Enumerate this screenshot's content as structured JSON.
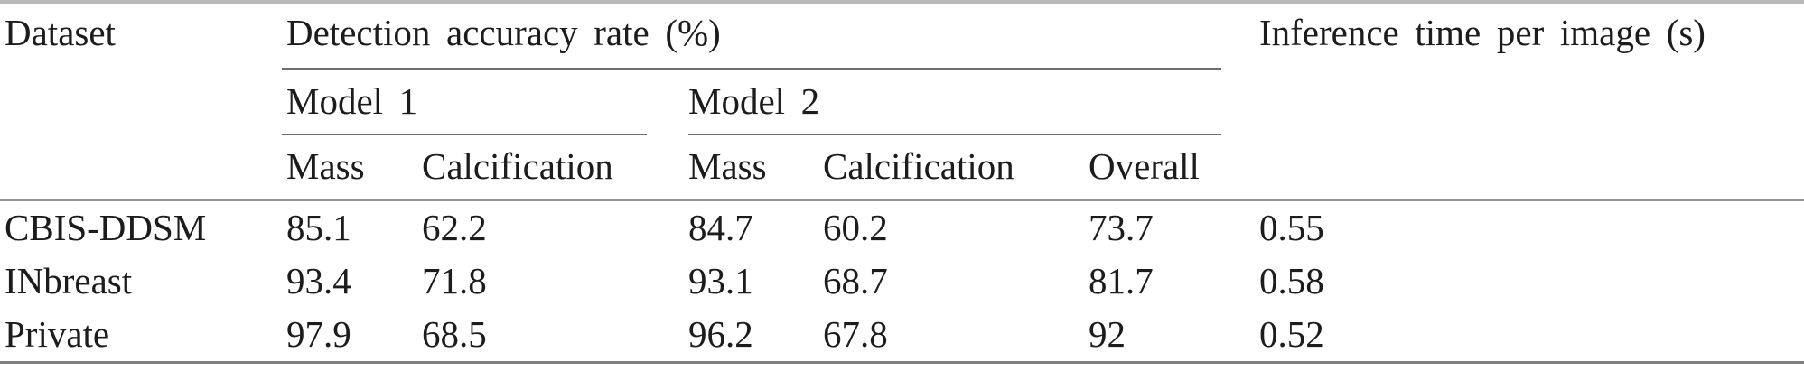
{
  "table": {
    "header": {
      "dataset": "Dataset",
      "detection_group": "Detection accuracy rate (%)",
      "inference": "Inference time per image (s)",
      "model1": "Model 1",
      "model2": "Model 2",
      "m1_mass": "Mass",
      "m1_calcification": "Calcification",
      "m2_mass": "Mass",
      "m2_calcification": "Calcification",
      "overall": "Overall"
    },
    "rows": [
      {
        "dataset": "CBIS-DDSM",
        "m1_mass": "85.1",
        "m1_calcification": "62.2",
        "m2_mass": "84.7",
        "m2_calcification": "60.2",
        "overall": "73.7",
        "inference": "0.55"
      },
      {
        "dataset": "INbreast",
        "m1_mass": "93.4",
        "m1_calcification": "71.8",
        "m2_mass": "93.1",
        "m2_calcification": "68.7",
        "overall": "81.7",
        "inference": "0.58"
      },
      {
        "dataset": "Private",
        "m1_mass": "97.9",
        "m1_calcification": "68.5",
        "m2_mass": "96.2",
        "m2_calcification": "67.8",
        "overall": "92",
        "inference": "0.52"
      }
    ],
    "colors": {
      "text": "#1c1c1c",
      "rule_top": "#b8b8b8",
      "rule_header": "#6e6e6e",
      "rule_mid": "#949494",
      "rule_bottom": "#7f7f7f",
      "background": "#ffffff"
    }
  }
}
